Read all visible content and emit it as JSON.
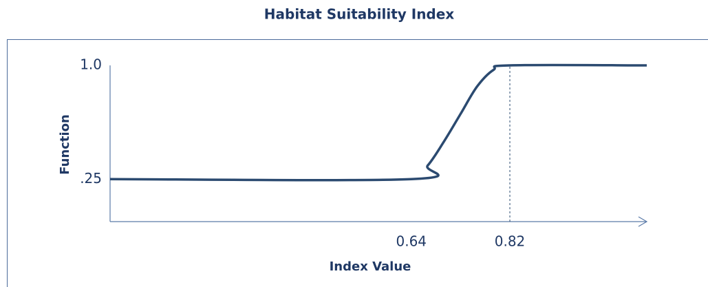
{
  "chart_data": {
    "type": "line",
    "title": "Habitat Suitability Index",
    "xlabel": "Index Value",
    "ylabel": "Function",
    "x": [
      0.09,
      0.64,
      0.67,
      0.7,
      0.73,
      0.76,
      0.79,
      0.82,
      1.07
    ],
    "series": [
      {
        "name": "Function",
        "color": "#2b4a70",
        "values": [
          0.25,
          0.25,
          0.34,
          0.5,
          0.68,
          0.86,
          0.97,
          1.0,
          1.0
        ]
      }
    ],
    "xlim": [
      0.09,
      1.07
    ],
    "ylim": [
      -0.03,
      1.0
    ],
    "xticks": [
      0.64,
      0.82
    ],
    "yticks": [
      {
        "value": 0.25,
        "label": ".25"
      },
      {
        "value": 1.0,
        "label": "1.0"
      }
    ]
  }
}
